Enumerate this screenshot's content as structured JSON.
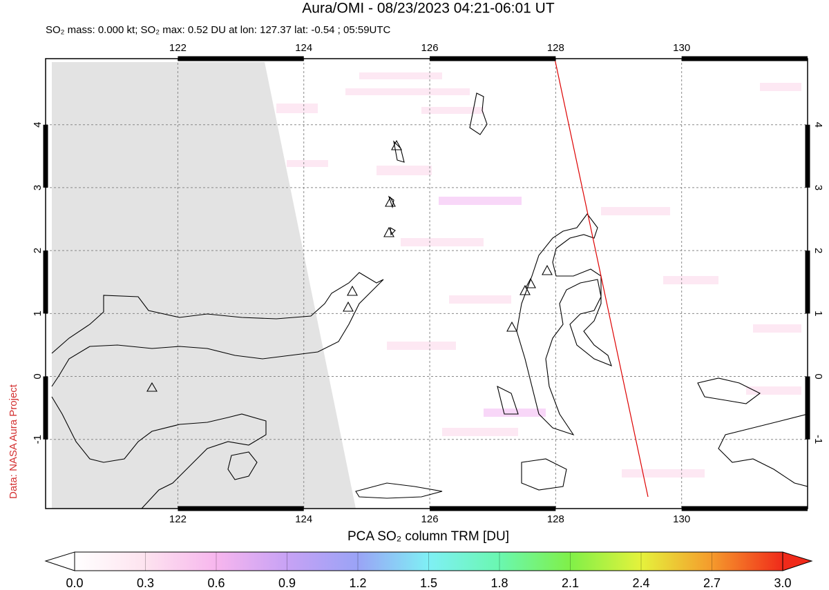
{
  "chart_data": {
    "type": "map",
    "title": "Aura/OMI - 08/23/2023 04:21-06:01 UT",
    "subtitle": "SO₂ mass: 0.000 kt; SO₂ max: 0.52 DU at lon: 127.37 lat: -0.54 ; 05:59UTC",
    "credit": "Data: NASA Aura Project",
    "xlim": [
      119.9,
      132.0
    ],
    "ylim": [
      -2.1,
      5.05
    ],
    "xticks": [
      122,
      124,
      126,
      128,
      130
    ],
    "yticks": [
      4,
      3,
      2,
      1,
      0,
      -1
    ],
    "grid": true,
    "colorbar": {
      "label": "PCA SO₂ column TRM [DU]",
      "lim": [
        0,
        3
      ],
      "ticks": [
        {
          "value": 0,
          "label": "0.0"
        },
        {
          "value": 0.3,
          "label": "0.3"
        },
        {
          "value": 0.6,
          "label": "0.6"
        },
        {
          "value": 0.9,
          "label": "0.9"
        },
        {
          "value": 1.2,
          "label": "1.2"
        },
        {
          "value": 1.5,
          "label": "1.5"
        },
        {
          "value": 1.8,
          "label": "1.8"
        },
        {
          "value": 2.1,
          "label": "2.1"
        },
        {
          "value": 2.4,
          "label": "2.4"
        },
        {
          "value": 2.7,
          "label": "2.7"
        },
        {
          "value": 3.0,
          "label": "3.0"
        }
      ]
    }
  }
}
